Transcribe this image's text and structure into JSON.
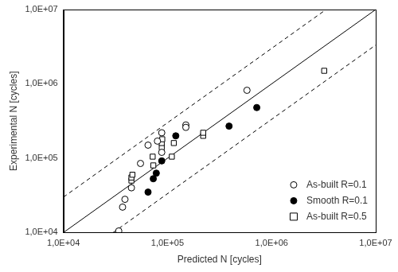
{
  "chart_data": {
    "type": "scatter",
    "x_label": "Predicted N [cycles]",
    "y_label": "Experimental N [cycles]",
    "log": true,
    "grid": false,
    "legend": "lower right",
    "xlim": [
      10000,
      10000000
    ],
    "ylim": [
      10000,
      10000000
    ],
    "xticks": [
      {
        "value": 10000,
        "label": "1,0E+04"
      },
      {
        "value": 100000,
        "label": "1,0E+05"
      },
      {
        "value": 1000000,
        "label": "1,0E+06"
      },
      {
        "value": 10000000,
        "label": "1,0E+07"
      }
    ],
    "yticks": [
      {
        "value": 10000,
        "label": "1,0E+04"
      },
      {
        "value": 100000,
        "label": "1,0E+05"
      },
      {
        "value": 1000000,
        "label": "1,0E+06"
      },
      {
        "value": 10000000,
        "label": "1,0E+07"
      }
    ],
    "series": [
      {
        "name": "As-built R=0.1",
        "color": "#000000",
        "marker": "circle_open",
        "x": [
          34000,
          37000,
          39000,
          45000,
          55000,
          65000,
          80000,
          88000,
          88000,
          150000,
          150000,
          580000
        ],
        "values": [
          10500,
          22000,
          28000,
          40000,
          85000,
          150000,
          170000,
          120000,
          220000,
          280000,
          260000,
          820000
        ]
      },
      {
        "name": "Smooth R=0.1",
        "color": "#000000",
        "marker": "circle",
        "x": [
          65000,
          73000,
          78000,
          88000,
          120000,
          390000,
          720000
        ],
        "values": [
          35000,
          53000,
          63000,
          92000,
          200000,
          270000,
          480000
        ]
      },
      {
        "name": "As-built R=0.5",
        "color": "#000000",
        "marker": "square_open",
        "x": [
          45000,
          45000,
          46000,
          72000,
          73000,
          88000,
          88000,
          89000,
          110000,
          115000,
          220000,
          220000,
          3200000
        ],
        "values": [
          50000,
          55000,
          60000,
          105000,
          80000,
          140000,
          160000,
          180000,
          105000,
          160000,
          200000,
          220000,
          1500000
        ]
      }
    ],
    "reference_lines": [
      {
        "x": [
          10000,
          10000000
        ],
        "y": [
          10000,
          10000000
        ],
        "line_style": "solid"
      },
      {
        "x": [
          10000,
          3333333
        ],
        "y": [
          30000,
          10000000
        ],
        "line_style": "dashed"
      },
      {
        "x": [
          30000,
          10000000
        ],
        "y": [
          10000,
          3333333
        ],
        "line_style": "dashed"
      }
    ]
  }
}
